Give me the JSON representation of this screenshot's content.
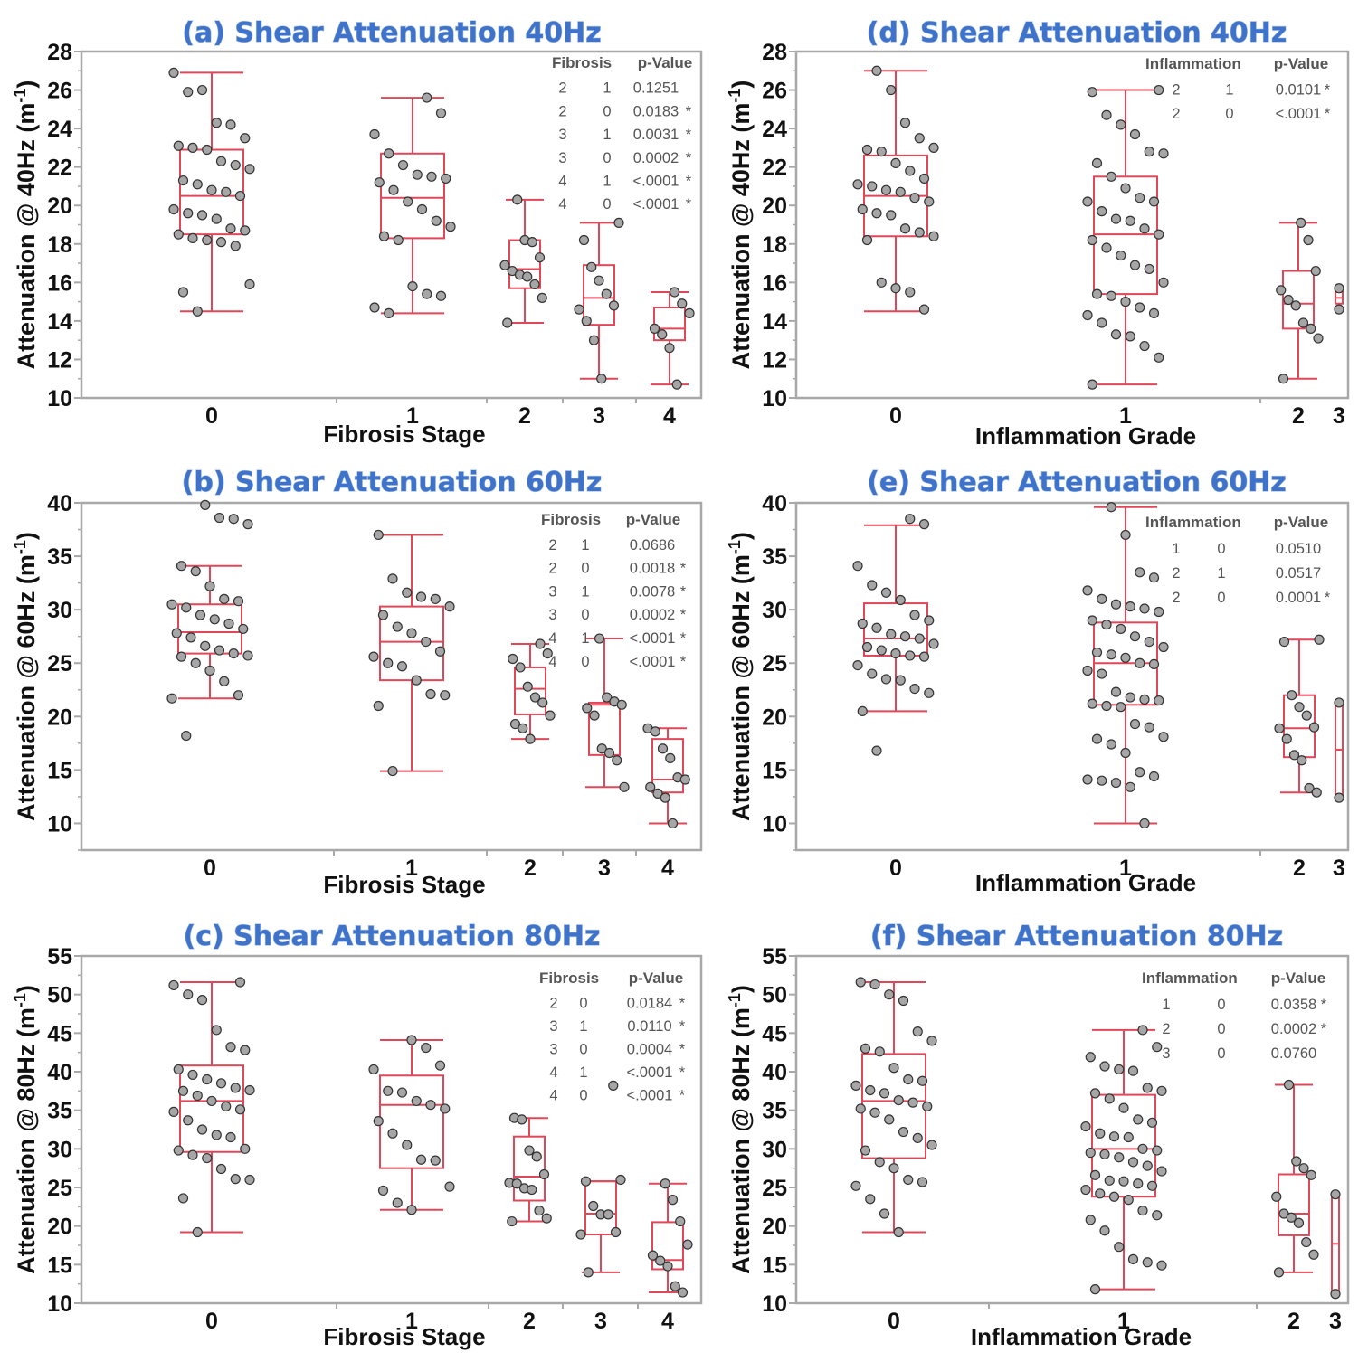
{
  "colors": {
    "box": "#e0485a",
    "point_fill": "#a6a6a6",
    "point_stroke": "#333333",
    "title": "#3f73c9",
    "frame": "#a8a8a8"
  },
  "chart_data": [
    {
      "id": "a",
      "type": "box",
      "title": "(a) Shear Attenuation 40Hz",
      "ylabel": "Attenuation @ 40Hz (m",
      "ylabel_sup": "-1",
      "ylabel_end": ")",
      "xlabel": "Fibrosis Stage",
      "ylim": [
        10,
        28
      ],
      "yticks": [
        10,
        12,
        14,
        16,
        18,
        20,
        22,
        24,
        26,
        28
      ],
      "categories": [
        "0",
        "1",
        "2",
        "3",
        "4"
      ],
      "boxes": [
        {
          "min": 14.5,
          "q1": 18.5,
          "median": 20.5,
          "q3": 22.9,
          "max": 26.9
        },
        {
          "min": 14.4,
          "q1": 18.3,
          "median": 20.4,
          "q3": 22.7,
          "max": 25.6
        },
        {
          "min": 13.9,
          "q1": 15.7,
          "median": 16.7,
          "q3": 18.2,
          "max": 20.3
        },
        {
          "min": 11.0,
          "q1": 13.8,
          "median": 15.2,
          "q3": 16.9,
          "max": 19.1
        },
        {
          "min": 10.7,
          "q1": 13.0,
          "median": 13.6,
          "q3": 14.7,
          "max": 15.5
        }
      ],
      "points": [
        [
          26.9,
          25.9,
          26.0,
          24.3,
          24.2,
          23.5,
          23.1,
          23.0,
          22.9,
          22.3,
          22.1,
          21.9,
          21.3,
          21.1,
          20.8,
          20.7,
          20.5,
          19.8,
          19.6,
          19.5,
          19.3,
          18.8,
          18.7,
          18.5,
          18.3,
          18.2,
          18.1,
          17.9,
          15.9,
          15.5,
          14.5
        ],
        [
          25.6,
          24.8,
          23.7,
          22.7,
          22.1,
          21.6,
          21.5,
          21.4,
          21.2,
          20.8,
          20.2,
          19.8,
          19.2,
          18.9,
          18.4,
          18.2,
          15.8,
          15.4,
          15.3,
          14.7,
          14.4
        ],
        [
          20.3,
          18.2,
          18.1,
          17.3,
          16.9,
          16.6,
          16.4,
          16.3,
          15.9,
          15.2,
          13.9
        ],
        [
          19.1,
          18.2,
          16.8,
          16.1,
          15.4,
          14.8,
          14.6,
          14.0,
          13.0,
          11.0
        ],
        [
          15.5,
          14.9,
          14.4,
          13.6,
          13.3,
          12.6,
          10.7
        ]
      ],
      "table": {
        "headers": [
          "Fibrosis",
          "p-Value"
        ],
        "rows": [
          [
            "2",
            "1",
            "0.1251",
            ""
          ],
          [
            "2",
            "0",
            "0.0183",
            "*"
          ],
          [
            "3",
            "1",
            "0.0031",
            "*"
          ],
          [
            "3",
            "0",
            "0.0002",
            "*"
          ],
          [
            "4",
            "1",
            "<.0001",
            "*"
          ],
          [
            "4",
            "0",
            "<.0001",
            "*"
          ]
        ]
      }
    },
    {
      "id": "b",
      "type": "box",
      "title": "(b) Shear Attenuation 60Hz",
      "ylabel": "Attenuation @ 60Hz (m",
      "ylabel_sup": "-1",
      "ylabel_end": ")",
      "xlabel": "Fibrosis Stage",
      "ylim": [
        7.5,
        40
      ],
      "yticks": [
        10,
        15,
        20,
        25,
        30,
        35,
        40
      ],
      "categories": [
        "0",
        "1",
        "2",
        "3",
        "4"
      ],
      "boxes": [
        {
          "min": 21.7,
          "q1": 25.9,
          "median": 27.9,
          "q3": 30.5,
          "max": 34.1
        },
        {
          "min": 14.9,
          "q1": 23.4,
          "median": 27.0,
          "q3": 30.3,
          "max": 37.0
        },
        {
          "min": 17.9,
          "q1": 20.2,
          "median": 22.6,
          "q3": 24.6,
          "max": 26.8
        },
        {
          "min": 13.4,
          "q1": 16.4,
          "median": 21.1,
          "q3": 21.3,
          "max": 27.3
        },
        {
          "min": 10.0,
          "q1": 12.9,
          "median": 14.1,
          "q3": 17.9,
          "max": 18.9
        }
      ],
      "points": [
        [
          39.8,
          38.6,
          38.5,
          38.0,
          34.1,
          33.6,
          32.2,
          31.0,
          30.8,
          30.5,
          30.2,
          29.5,
          29.1,
          28.7,
          28.2,
          27.8,
          27.4,
          26.6,
          26.2,
          25.9,
          25.7,
          25.6,
          25.0,
          24.3,
          23.3,
          22.0,
          21.7,
          18.2
        ],
        [
          37.0,
          32.9,
          31.6,
          31.2,
          31.0,
          30.3,
          29.5,
          28.4,
          27.8,
          27.0,
          26.1,
          25.6,
          25.0,
          24.7,
          23.4,
          22.1,
          22.0,
          21.0,
          14.9
        ],
        [
          26.8,
          25.9,
          25.4,
          24.6,
          22.8,
          21.8,
          21.3,
          20.1,
          19.3,
          18.9,
          17.9
        ],
        [
          27.3,
          21.8,
          21.4,
          21.1,
          20.8,
          20.1,
          17.0,
          16.6,
          15.9,
          13.4
        ],
        [
          18.9,
          18.6,
          17.0,
          16.1,
          14.3,
          14.1,
          13.4,
          12.8,
          12.4,
          10.0
        ]
      ],
      "table": {
        "headers": [
          "Fibrosis",
          "p-Value"
        ],
        "rows": [
          [
            "2",
            "1",
            "0.0686",
            ""
          ],
          [
            "2",
            "0",
            "0.0018",
            "*"
          ],
          [
            "3",
            "1",
            "0.0078",
            "*"
          ],
          [
            "3",
            "0",
            "0.0002",
            "*"
          ],
          [
            "4",
            "1",
            "<.0001",
            "*"
          ],
          [
            "4",
            "0",
            "<.0001",
            "*"
          ]
        ]
      }
    },
    {
      "id": "c",
      "type": "box",
      "title": "(c) Shear Attenuation 80Hz",
      "ylabel": "Attenuation @ 80Hz (m",
      "ylabel_sup": "-1",
      "ylabel_end": ")",
      "xlabel": "Fibrosis Stage",
      "ylim": [
        10,
        55
      ],
      "yticks": [
        10,
        15,
        20,
        25,
        30,
        35,
        40,
        45,
        50,
        55
      ],
      "categories": [
        "0",
        "1",
        "2",
        "3",
        "4"
      ],
      "boxes": [
        {
          "min": 19.2,
          "q1": 29.6,
          "median": 36.2,
          "q3": 40.8,
          "max": 51.6
        },
        {
          "min": 22.1,
          "q1": 27.5,
          "median": 35.7,
          "q3": 39.5,
          "max": 44.1
        },
        {
          "min": 20.6,
          "q1": 23.3,
          "median": 26.4,
          "q3": 31.6,
          "max": 34.0
        },
        {
          "min": 14.0,
          "q1": 18.9,
          "median": 21.6,
          "q3": 25.8,
          "max": 25.8
        },
        {
          "min": 11.4,
          "q1": 14.4,
          "median": 15.6,
          "q3": 20.5,
          "max": 25.5
        }
      ],
      "points": [
        [
          51.6,
          51.2,
          50.0,
          49.3,
          45.4,
          43.2,
          42.8,
          40.3,
          39.6,
          39.0,
          38.5,
          37.9,
          37.6,
          37.5,
          36.9,
          36.2,
          35.5,
          35.1,
          34.8,
          33.7,
          32.5,
          31.8,
          31.5,
          30.0,
          29.8,
          29.2,
          28.8,
          27.4,
          26.1,
          26.0,
          23.6,
          19.2
        ],
        [
          44.1,
          43.1,
          40.8,
          40.3,
          37.5,
          37.3,
          36.2,
          35.7,
          35.2,
          33.6,
          32.0,
          30.5,
          28.6,
          28.5,
          25.1,
          24.6,
          23.0,
          22.1
        ],
        [
          34.0,
          33.8,
          29.8,
          29.0,
          26.7,
          25.6,
          25.5,
          24.9,
          24.7,
          22.0,
          21.0,
          20.6
        ],
        [
          38.2,
          26.0,
          25.8,
          22.6,
          21.5,
          21.5,
          19.2,
          18.9,
          14.0
        ],
        [
          25.5,
          23.4,
          20.6,
          17.6,
          16.2,
          15.5,
          14.8,
          12.2,
          11.4
        ]
      ],
      "table": {
        "headers": [
          "Fibrosis",
          "p-Value"
        ],
        "rows": [
          [
            "2",
            "0",
            "0.0184",
            "*"
          ],
          [
            "3",
            "1",
            "0.0110",
            "*"
          ],
          [
            "3",
            "0",
            "0.0004",
            "*"
          ],
          [
            "4",
            "1",
            "<.0001",
            "*"
          ],
          [
            "4",
            "0",
            "<.0001",
            "*"
          ]
        ]
      }
    },
    {
      "id": "d",
      "type": "box",
      "title": "(d) Shear Attenuation 40Hz",
      "ylabel": "Attenuation @ 40Hz (m",
      "ylabel_sup": "-1",
      "ylabel_end": ")",
      "xlabel": "Inflammation Grade",
      "ylim": [
        10,
        28
      ],
      "yticks": [
        10,
        12,
        14,
        16,
        18,
        20,
        22,
        24,
        26,
        28
      ],
      "categories": [
        "0",
        "1",
        "2",
        "3"
      ],
      "boxes": [
        {
          "min": 14.5,
          "q1": 18.4,
          "median": 20.5,
          "q3": 22.6,
          "max": 27.0
        },
        {
          "min": 10.7,
          "q1": 15.4,
          "median": 18.5,
          "q3": 21.5,
          "max": 26.0
        },
        {
          "min": 11.0,
          "q1": 13.6,
          "median": 14.9,
          "q3": 16.6,
          "max": 19.1
        },
        {
          "min": 14.6,
          "q1": 14.9,
          "median": 15.2,
          "q3": 15.5,
          "max": 15.7
        }
      ],
      "points": [
        [
          27.0,
          26.0,
          24.3,
          23.5,
          23.0,
          22.9,
          22.8,
          22.2,
          21.8,
          21.4,
          21.1,
          21.0,
          20.8,
          20.7,
          20.4,
          20.2,
          19.8,
          19.6,
          19.5,
          18.8,
          18.6,
          18.4,
          18.2,
          16.0,
          15.7,
          15.5,
          14.6
        ],
        [
          26.0,
          25.9,
          24.7,
          24.2,
          23.7,
          22.8,
          22.7,
          22.2,
          21.5,
          20.9,
          20.4,
          20.2,
          20.2,
          19.7,
          19.3,
          19.2,
          18.8,
          18.5,
          18.2,
          17.8,
          17.4,
          16.9,
          16.7,
          16.0,
          15.4,
          15.3,
          15.0,
          14.7,
          14.4,
          14.3,
          13.9,
          13.3,
          13.2,
          12.7,
          12.1,
          10.7
        ],
        [
          19.1,
          18.2,
          16.6,
          15.6,
          15.1,
          14.8,
          13.9,
          13.6,
          13.1,
          11.0
        ],
        [
          15.7,
          14.6
        ]
      ],
      "table": {
        "headers": [
          "Inflammation",
          "p-Value"
        ],
        "rows": [
          [
            "2",
            "1",
            "0.0101",
            "*"
          ],
          [
            "2",
            "0",
            "<.0001",
            "*"
          ]
        ]
      }
    },
    {
      "id": "e",
      "type": "box",
      "title": "(e) Shear Attenuation 60Hz",
      "ylabel": "Attenuation @ 60Hz (m",
      "ylabel_sup": "-1",
      "ylabel_end": ")",
      "xlabel": "Inflammation Grade",
      "ylim": [
        7.5,
        40
      ],
      "yticks": [
        10,
        15,
        20,
        25,
        30,
        35,
        40
      ],
      "categories": [
        "0",
        "1",
        "2",
        "3"
      ],
      "boxes": [
        {
          "min": 20.5,
          "q1": 25.7,
          "median": 27.3,
          "q3": 30.6,
          "max": 37.9
        },
        {
          "min": 10.0,
          "q1": 21.1,
          "median": 25.0,
          "q3": 28.8,
          "max": 39.6
        },
        {
          "min": 12.9,
          "q1": 16.2,
          "median": 18.9,
          "q3": 22.0,
          "max": 27.2
        },
        {
          "min": 12.4,
          "q1": 12.4,
          "median": 16.9,
          "q3": 21.3,
          "max": 21.3
        }
      ],
      "points": [
        [
          38.5,
          38.0,
          34.1,
          32.3,
          31.6,
          30.9,
          29.5,
          29.0,
          28.7,
          28.3,
          27.7,
          27.5,
          27.3,
          26.8,
          26.5,
          26.2,
          25.9,
          25.7,
          25.6,
          24.8,
          24.0,
          23.5,
          23.4,
          22.6,
          22.2,
          20.5,
          16.8
        ],
        [
          39.6,
          37.0,
          33.5,
          33.0,
          31.8,
          31.0,
          30.5,
          30.3,
          30.1,
          29.8,
          29.0,
          28.6,
          28.2,
          27.5,
          27.0,
          26.5,
          26.0,
          25.8,
          25.5,
          25.0,
          24.9,
          24.3,
          24.0,
          22.3,
          21.8,
          21.6,
          21.5,
          21.2,
          21.0,
          20.9,
          19.3,
          19.0,
          18.1,
          17.9,
          17.4,
          16.6,
          14.8,
          14.4,
          14.1,
          14.0,
          13.8,
          13.4,
          10.0
        ],
        [
          27.2,
          27.0,
          22.0,
          20.9,
          20.1,
          19.0,
          18.9,
          17.9,
          16.4,
          15.9,
          13.3,
          12.9
        ],
        [
          21.3,
          12.4
        ]
      ],
      "table": {
        "headers": [
          "Inflammation",
          "p-Value"
        ],
        "rows": [
          [
            "1",
            "0",
            "0.0510",
            ""
          ],
          [
            "2",
            "1",
            "0.0517",
            ""
          ],
          [
            "2",
            "0",
            "0.0001",
            "*"
          ]
        ]
      }
    },
    {
      "id": "f",
      "type": "box",
      "title": "(f) Shear Attenuation 80Hz",
      "ylabel": "Attenuation @ 80Hz (m",
      "ylabel_sup": "-1",
      "ylabel_end": ")",
      "xlabel": "Inflammation Grade",
      "ylim": [
        10,
        55
      ],
      "yticks": [
        10,
        15,
        20,
        25,
        30,
        35,
        40,
        45,
        50,
        55
      ],
      "categories": [
        "0",
        "1",
        "2",
        "3"
      ],
      "boxes": [
        {
          "min": 19.2,
          "q1": 28.8,
          "median": 36.2,
          "q3": 42.3,
          "max": 51.6
        },
        {
          "min": 11.8,
          "q1": 23.8,
          "median": 30.0,
          "q3": 37.0,
          "max": 45.4
        },
        {
          "min": 14.0,
          "q1": 18.8,
          "median": 21.6,
          "q3": 26.7,
          "max": 38.3
        },
        {
          "min": 11.2,
          "q1": 11.2,
          "median": 17.7,
          "q3": 24.1,
          "max": 24.1
        }
      ],
      "points": [
        [
          51.6,
          51.3,
          50.0,
          49.2,
          45.2,
          44.0,
          43.0,
          42.6,
          40.5,
          39.0,
          38.8,
          38.2,
          37.6,
          37.2,
          36.3,
          36.0,
          35.5,
          35.2,
          34.7,
          33.8,
          32.2,
          31.4,
          30.5,
          29.8,
          28.3,
          27.5,
          26.0,
          25.7,
          25.2,
          23.5,
          21.6,
          19.2
        ],
        [
          45.4,
          43.2,
          41.9,
          40.7,
          40.3,
          40.1,
          37.9,
          37.5,
          37.2,
          36.5,
          35.3,
          33.8,
          33.4,
          32.9,
          32.0,
          31.6,
          31.5,
          30.0,
          29.8,
          29.5,
          29.3,
          28.9,
          28.3,
          27.8,
          27.1,
          26.6,
          25.9,
          25.8,
          25.5,
          25.2,
          24.7,
          24.2,
          23.8,
          23.4,
          22.0,
          21.4,
          20.8,
          19.4,
          17.3,
          15.7,
          15.3,
          14.9,
          11.8
        ],
        [
          38.3,
          28.4,
          27.5,
          26.6,
          23.8,
          21.6,
          21.1,
          20.4,
          17.9,
          16.3,
          14.0
        ],
        [
          24.1,
          11.2
        ]
      ],
      "table": {
        "headers": [
          "Inflammation",
          "p-Value"
        ],
        "rows": [
          [
            "1",
            "0",
            "0.0358",
            "*"
          ],
          [
            "2",
            "0",
            "0.0002",
            "*"
          ],
          [
            "3",
            "0",
            "0.0760",
            ""
          ]
        ]
      }
    }
  ]
}
